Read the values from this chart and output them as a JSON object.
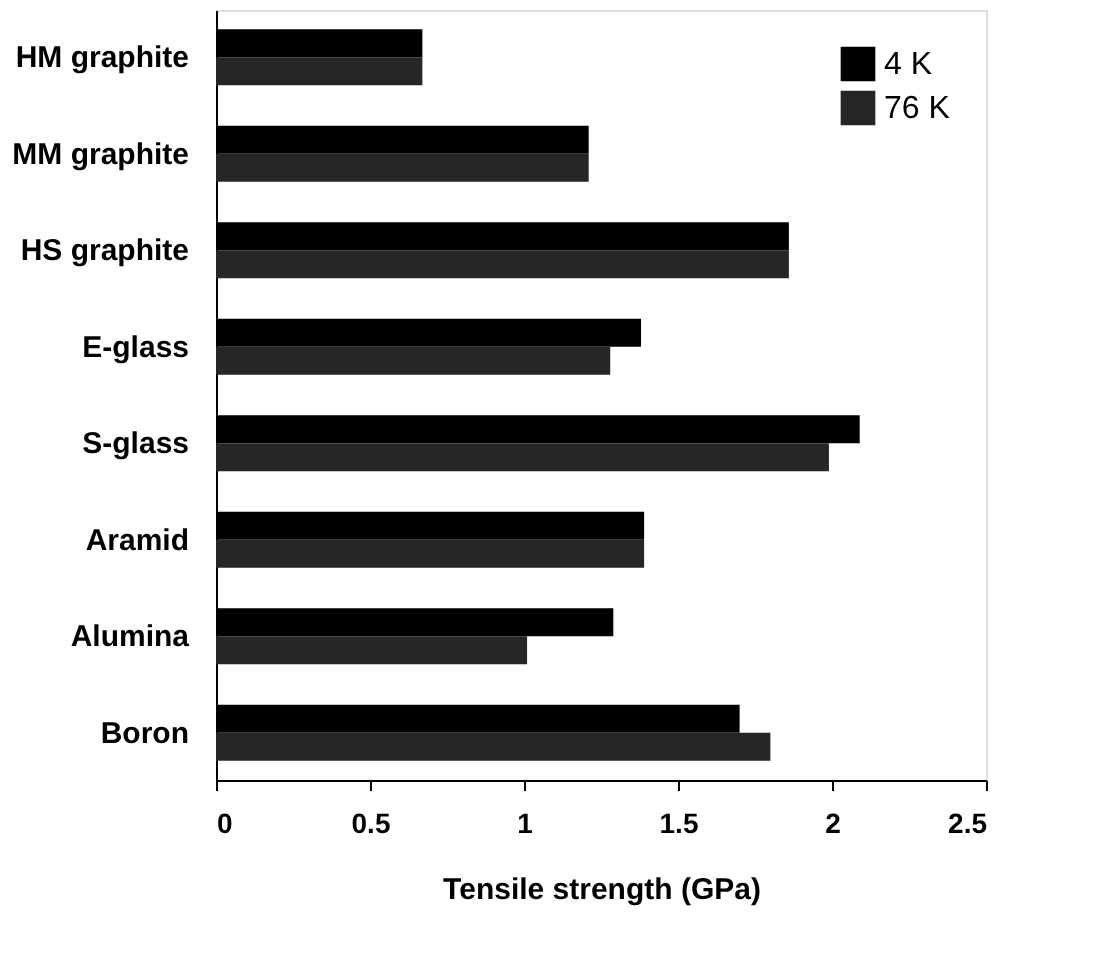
{
  "chart_data": {
    "type": "bar",
    "orientation": "horizontal",
    "categories": [
      "HM graphite",
      "MM graphite",
      "HS graphite",
      "E-glass",
      "S-glass",
      "Aramid",
      "Alumina",
      "Boron"
    ],
    "series": [
      {
        "name": "4 K",
        "color": "#000000",
        "values": [
          0.67,
          1.21,
          1.86,
          1.38,
          2.09,
          1.39,
          1.29,
          1.7
        ]
      },
      {
        "name": "76 K",
        "color": "#262626",
        "values": [
          0.67,
          1.21,
          1.86,
          1.28,
          1.99,
          1.39,
          1.01,
          1.8
        ]
      }
    ],
    "xlabel": "Tensile strength (GPa)",
    "xlim": [
      0,
      2.5
    ],
    "xticks": [
      0,
      0.5,
      1,
      1.5,
      2,
      2.5
    ],
    "legend": "top right",
    "grid": false
  }
}
